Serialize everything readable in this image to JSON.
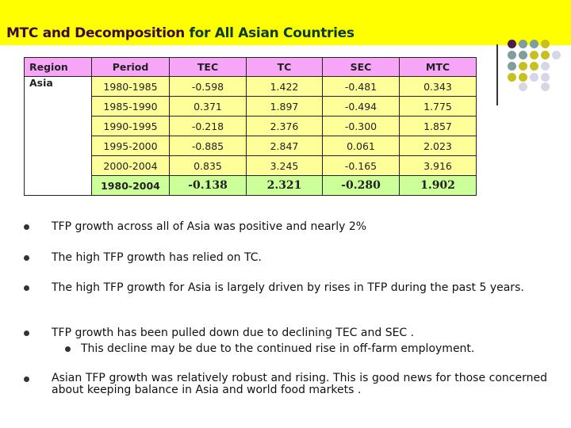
{
  "title": {
    "part1": "MTC and Decomposition",
    "part2": "for All Asian Countries"
  },
  "colors": {
    "banner": "#ffff00",
    "header": "#f7a6f7",
    "rows": "#ffff99",
    "total": "#ccff99"
  },
  "table": {
    "headers": [
      "Region",
      "Period",
      "TEC",
      "TC",
      "SEC",
      "MTC"
    ],
    "region": "Asia",
    "rows": [
      [
        "1980-1985",
        "-0.598",
        "1.422",
        "-0.481",
        "0.343"
      ],
      [
        "1985-1990",
        "0.371",
        "1.897",
        "-0.494",
        "1.775"
      ],
      [
        "1990-1995",
        "-0.218",
        "2.376",
        "-0.300",
        "1.857"
      ],
      [
        "1995-2000",
        "-0.885",
        "2.847",
        "0.061",
        "2.023"
      ],
      [
        "2000-2004",
        "0.835",
        "3.245",
        "-0.165",
        "3.916"
      ],
      [
        "1980-2004",
        "-0.138",
        "2.321",
        "-0.280",
        "1.902"
      ]
    ]
  },
  "bullets": [
    "TFP growth across all of Asia was positive and nearly 2%",
    "The high TFP growth has relied on TC.",
    "The high TFP growth for Asia is largely driven by rises in TFP during the past 5 years.",
    "TFP growth has been pulled down due to declining TEC and SEC .",
    "Asian TFP growth was relatively robust and rising.  This is good news for those concerned about keeping balance in Asia and world food markets ."
  ],
  "sub_bullet": "This decline may be due to the continued rise in off-farm employment."
}
